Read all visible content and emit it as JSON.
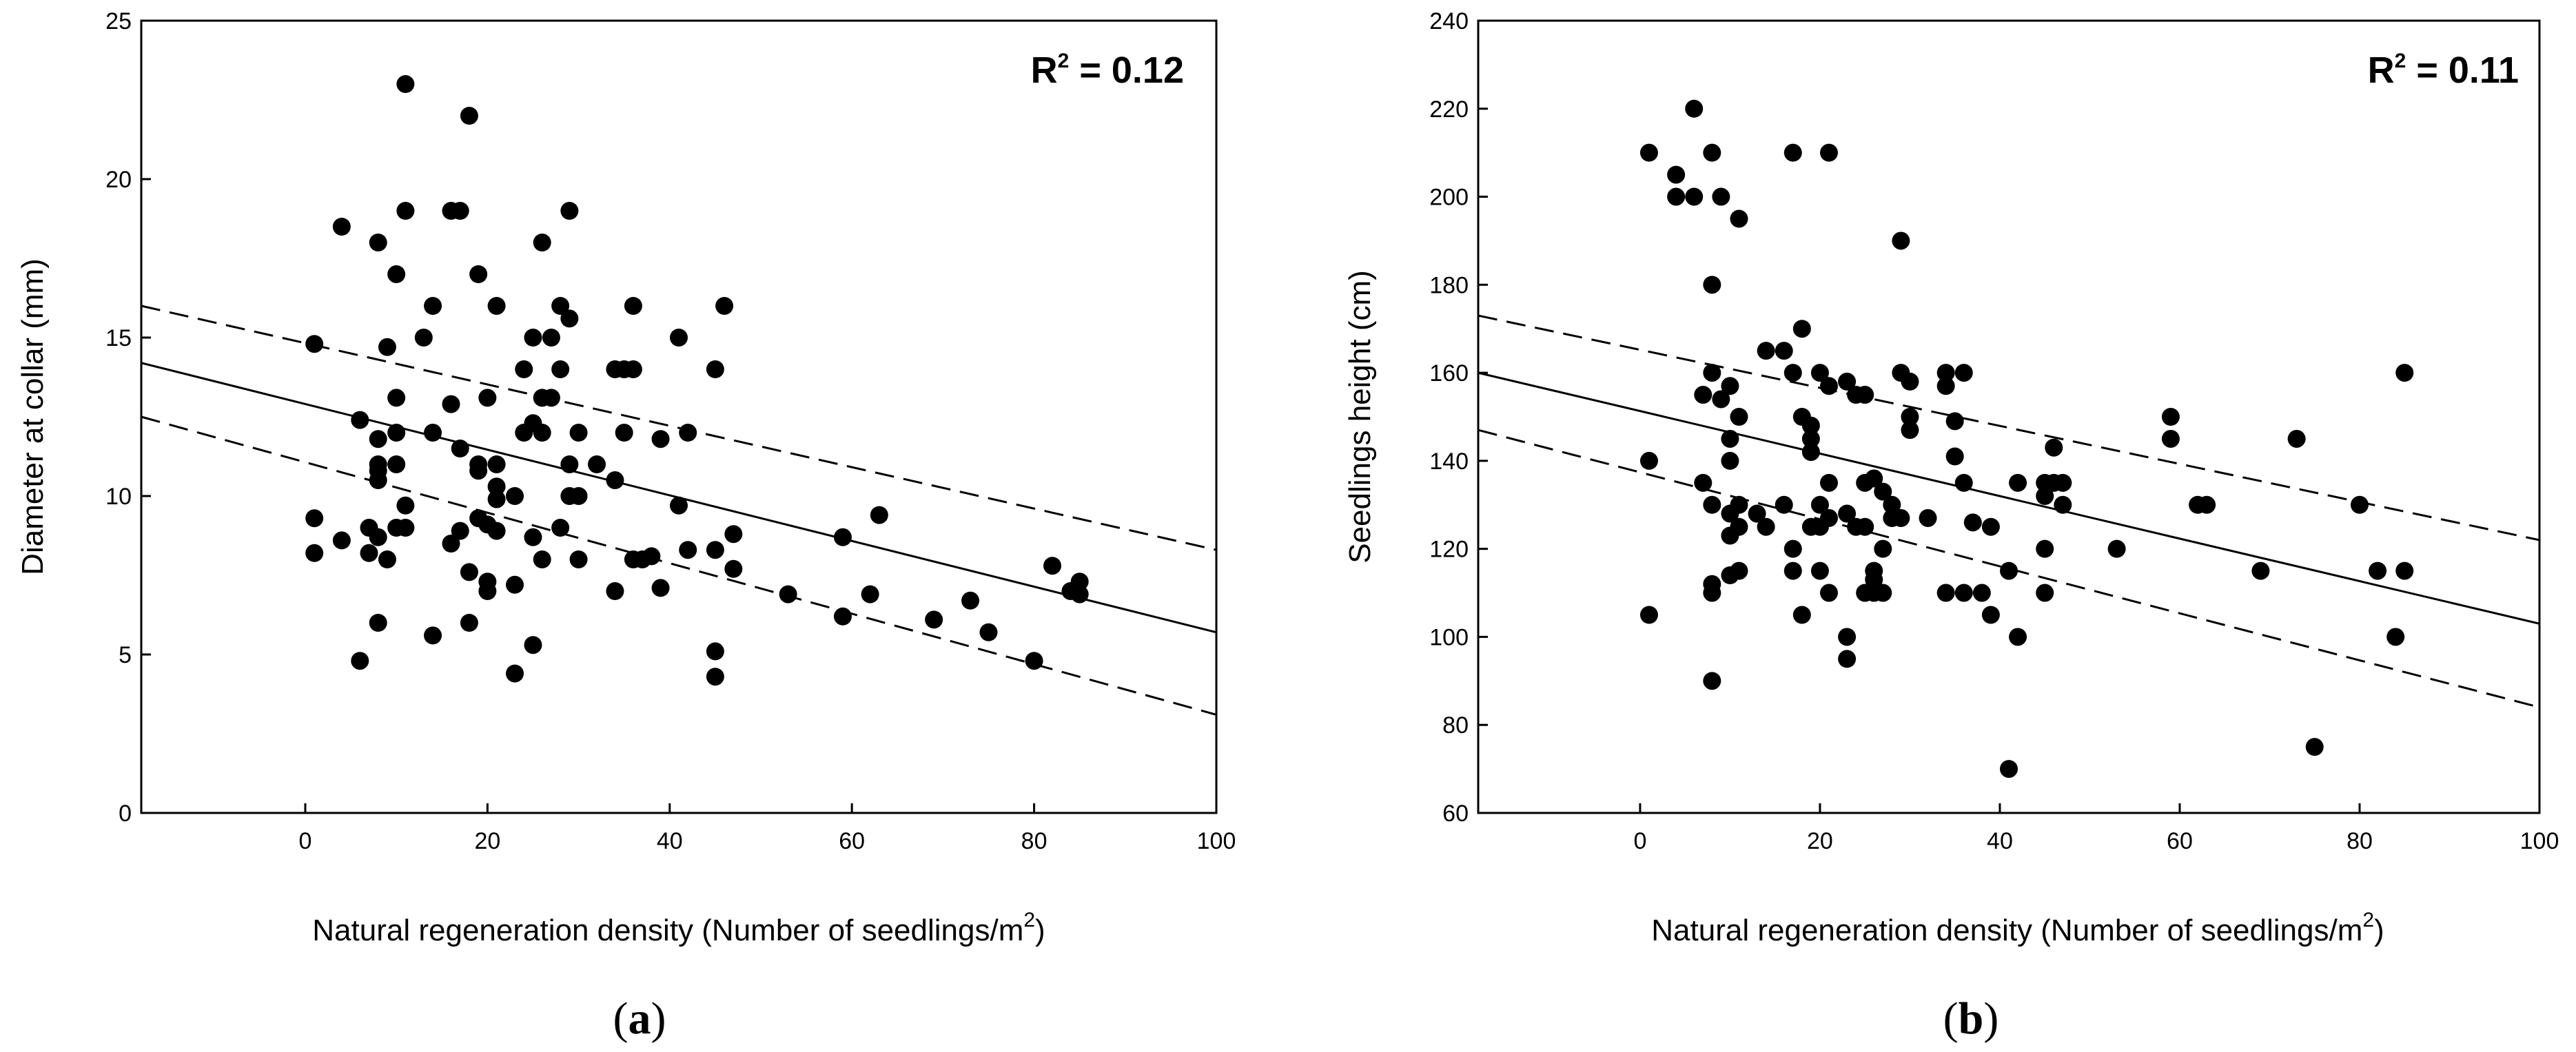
{
  "chart_data": [
    {
      "type": "scatter",
      "panel_label": "(a)",
      "panel_letter": "a",
      "r2_label": "R",
      "r2_exp": "2",
      "r2_value": " = 0.12",
      "xlabel": "Natural regeneration density (Number of seedlings/m",
      "xlabel_exp": "2",
      "xlabel_end": ")",
      "ylabel": "Diameter at collar (mm)",
      "xlim": [
        -18,
        100
      ],
      "ylim": [
        0,
        25
      ],
      "xticks": [
        0,
        20,
        40,
        60,
        80,
        100
      ],
      "yticks": [
        0,
        5,
        10,
        15,
        20,
        25
      ],
      "regression": {
        "x": [
          -18,
          100
        ],
        "y": [
          14.2,
          5.7
        ]
      },
      "ci_upper": {
        "x": [
          -18,
          100
        ],
        "y": [
          16.0,
          8.3
        ]
      },
      "ci_lower": {
        "x": [
          -18,
          100
        ],
        "y": [
          12.5,
          3.1
        ]
      },
      "points": [
        [
          1,
          14.8
        ],
        [
          1,
          9.3
        ],
        [
          1,
          8.2
        ],
        [
          4,
          18.5
        ],
        [
          4,
          8.6
        ],
        [
          6,
          12.4
        ],
        [
          6,
          4.8
        ],
        [
          7,
          9.0
        ],
        [
          7,
          8.2
        ],
        [
          8,
          18.0
        ],
        [
          8,
          11.8
        ],
        [
          8,
          11.0
        ],
        [
          8,
          10.8
        ],
        [
          8,
          10.5
        ],
        [
          8,
          8.7
        ],
        [
          8,
          6.0
        ],
        [
          9,
          14.7
        ],
        [
          9,
          8.0
        ],
        [
          10,
          17.0
        ],
        [
          10,
          13.1
        ],
        [
          10,
          12.0
        ],
        [
          10,
          11.0
        ],
        [
          10,
          9.0
        ],
        [
          11,
          23.0
        ],
        [
          11,
          19.0
        ],
        [
          11,
          9.7
        ],
        [
          11,
          9.0
        ],
        [
          13,
          15.0
        ],
        [
          14,
          16.0
        ],
        [
          14,
          12.0
        ],
        [
          14,
          5.6
        ],
        [
          16,
          19.0
        ],
        [
          16,
          12.9
        ],
        [
          16,
          8.5
        ],
        [
          17,
          19.0
        ],
        [
          17,
          11.5
        ],
        [
          17,
          8.9
        ],
        [
          18,
          22.0
        ],
        [
          18,
          7.6
        ],
        [
          18,
          6.0
        ],
        [
          19,
          17.0
        ],
        [
          19,
          11.0
        ],
        [
          19,
          10.8
        ],
        [
          19,
          9.3
        ],
        [
          20,
          13.1
        ],
        [
          20,
          9.1
        ],
        [
          20,
          7.3
        ],
        [
          20,
          7.0
        ],
        [
          21,
          16.0
        ],
        [
          21,
          11.0
        ],
        [
          21,
          10.3
        ],
        [
          21,
          9.9
        ],
        [
          21,
          8.9
        ],
        [
          23,
          10.0
        ],
        [
          23,
          7.2
        ],
        [
          23,
          4.4
        ],
        [
          24,
          14.0
        ],
        [
          24,
          12.0
        ],
        [
          25,
          15.0
        ],
        [
          25,
          12.3
        ],
        [
          25,
          8.7
        ],
        [
          25,
          5.3
        ],
        [
          26,
          18.0
        ],
        [
          26,
          13.1
        ],
        [
          26,
          12.0
        ],
        [
          26,
          8.0
        ],
        [
          27,
          15.0
        ],
        [
          27,
          13.1
        ],
        [
          28,
          16.0
        ],
        [
          28,
          14.0
        ],
        [
          28,
          9.0
        ],
        [
          29,
          19.0
        ],
        [
          29,
          15.6
        ],
        [
          29,
          11.0
        ],
        [
          29,
          10.0
        ],
        [
          30,
          12.0
        ],
        [
          30,
          10.0
        ],
        [
          30,
          8.0
        ],
        [
          32,
          11.0
        ],
        [
          34,
          14.0
        ],
        [
          34,
          10.5
        ],
        [
          34,
          7.0
        ],
        [
          35,
          14.0
        ],
        [
          35,
          12.0
        ],
        [
          36,
          16.0
        ],
        [
          36,
          14.0
        ],
        [
          36,
          8.0
        ],
        [
          37,
          8.0
        ],
        [
          38,
          8.1
        ],
        [
          39,
          11.8
        ],
        [
          39,
          7.1
        ],
        [
          41,
          15.0
        ],
        [
          41,
          9.7
        ],
        [
          42,
          12.0
        ],
        [
          42,
          8.3
        ],
        [
          45,
          14.0
        ],
        [
          45,
          8.3
        ],
        [
          45,
          5.1
        ],
        [
          45,
          4.3
        ],
        [
          46,
          16.0
        ],
        [
          47,
          8.8
        ],
        [
          47,
          7.7
        ],
        [
          53,
          6.9
        ],
        [
          59,
          8.7
        ],
        [
          59,
          6.2
        ],
        [
          62,
          6.9
        ],
        [
          63,
          9.4
        ],
        [
          69,
          6.1
        ],
        [
          73,
          6.7
        ],
        [
          75,
          5.7
        ],
        [
          80,
          4.8
        ],
        [
          82,
          7.8
        ],
        [
          84,
          7.0
        ],
        [
          85,
          7.3
        ],
        [
          85,
          6.9
        ]
      ]
    },
    {
      "type": "scatter",
      "panel_label": "(b)",
      "panel_letter": "b",
      "r2_label": "R",
      "r2_exp": "2",
      "r2_value": " = 0.11",
      "xlabel": "Natural regeneration density (Number of seedlings/m",
      "xlabel_exp": "2",
      "xlabel_end": ")",
      "ylabel": "Seedlings height (cm)",
      "xlim": [
        -18,
        100
      ],
      "ylim": [
        60,
        240
      ],
      "xticks": [
        0,
        20,
        40,
        60,
        80,
        100
      ],
      "yticks": [
        60,
        80,
        100,
        120,
        140,
        160,
        180,
        200,
        220,
        240
      ],
      "regression": {
        "x": [
          -18,
          100
        ],
        "y": [
          160,
          103
        ]
      },
      "ci_upper": {
        "x": [
          -18,
          100
        ],
        "y": [
          173,
          122
        ]
      },
      "ci_lower": {
        "x": [
          -18,
          100
        ],
        "y": [
          147,
          84
        ]
      },
      "points": [
        [
          1,
          210
        ],
        [
          1,
          140
        ],
        [
          1,
          105
        ],
        [
          4,
          205
        ],
        [
          4,
          200
        ],
        [
          6,
          220
        ],
        [
          6,
          200
        ],
        [
          7,
          155
        ],
        [
          7,
          135
        ],
        [
          8,
          210
        ],
        [
          8,
          180
        ],
        [
          8,
          160
        ],
        [
          8,
          130
        ],
        [
          8,
          112
        ],
        [
          8,
          110
        ],
        [
          8,
          90
        ],
        [
          9,
          200
        ],
        [
          9,
          154
        ],
        [
          10,
          157
        ],
        [
          10,
          145
        ],
        [
          10,
          140
        ],
        [
          10,
          128
        ],
        [
          10,
          123
        ],
        [
          10,
          114
        ],
        [
          11,
          195
        ],
        [
          11,
          150
        ],
        [
          11,
          130
        ],
        [
          11,
          125
        ],
        [
          11,
          115
        ],
        [
          13,
          128
        ],
        [
          14,
          165
        ],
        [
          14,
          125
        ],
        [
          16,
          165
        ],
        [
          16,
          130
        ],
        [
          17,
          210
        ],
        [
          17,
          160
        ],
        [
          17,
          120
        ],
        [
          17,
          115
        ],
        [
          18,
          170
        ],
        [
          18,
          150
        ],
        [
          18,
          105
        ],
        [
          19,
          148
        ],
        [
          19,
          145
        ],
        [
          19,
          142
        ],
        [
          19,
          125
        ],
        [
          20,
          160
        ],
        [
          20,
          130
        ],
        [
          20,
          125
        ],
        [
          20,
          115
        ],
        [
          21,
          210
        ],
        [
          21,
          157
        ],
        [
          21,
          135
        ],
        [
          21,
          127
        ],
        [
          21,
          110
        ],
        [
          23,
          158
        ],
        [
          23,
          128
        ],
        [
          23,
          100
        ],
        [
          23,
          95
        ],
        [
          24,
          155
        ],
        [
          24,
          125
        ],
        [
          25,
          155
        ],
        [
          25,
          135
        ],
        [
          25,
          125
        ],
        [
          25,
          110
        ],
        [
          26,
          136
        ],
        [
          26,
          115
        ],
        [
          26,
          113
        ],
        [
          26,
          110
        ],
        [
          27,
          133
        ],
        [
          27,
          120
        ],
        [
          27,
          110
        ],
        [
          28,
          130
        ],
        [
          28,
          127
        ],
        [
          29,
          190
        ],
        [
          29,
          160
        ],
        [
          29,
          127
        ],
        [
          30,
          158
        ],
        [
          30,
          150
        ],
        [
          30,
          147
        ],
        [
          32,
          127
        ],
        [
          34,
          160
        ],
        [
          34,
          157
        ],
        [
          34,
          110
        ],
        [
          35,
          149
        ],
        [
          35,
          141
        ],
        [
          36,
          160
        ],
        [
          36,
          135
        ],
        [
          36,
          110
        ],
        [
          37,
          126
        ],
        [
          38,
          110
        ],
        [
          39,
          125
        ],
        [
          39,
          105
        ],
        [
          41,
          115
        ],
        [
          41,
          70
        ],
        [
          42,
          135
        ],
        [
          42,
          100
        ],
        [
          45,
          135
        ],
        [
          45,
          132
        ],
        [
          45,
          120
        ],
        [
          45,
          110
        ],
        [
          46,
          143
        ],
        [
          46,
          135
        ],
        [
          47,
          135
        ],
        [
          47,
          130
        ],
        [
          53,
          120
        ],
        [
          59,
          150
        ],
        [
          59,
          145
        ],
        [
          62,
          130
        ],
        [
          63,
          130
        ],
        [
          69,
          115
        ],
        [
          73,
          145
        ],
        [
          75,
          75
        ],
        [
          80,
          130
        ],
        [
          82,
          115
        ],
        [
          84,
          100
        ],
        [
          85,
          160
        ],
        [
          85,
          115
        ]
      ]
    }
  ]
}
